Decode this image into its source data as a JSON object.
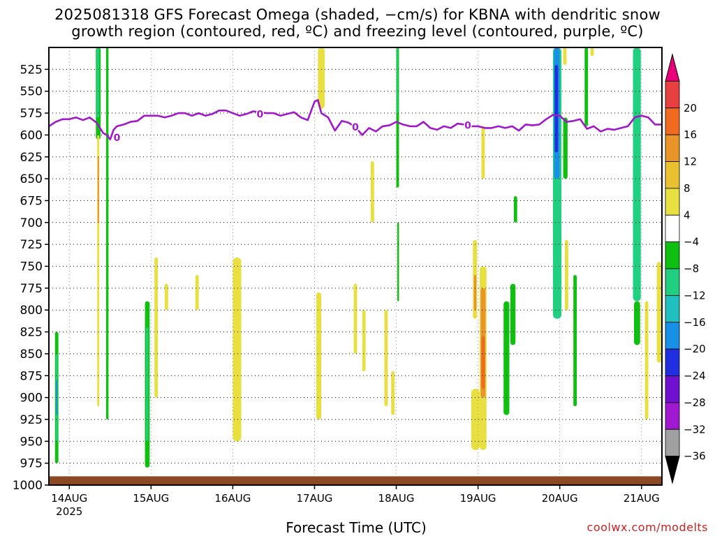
{
  "chart_data": {
    "type": "heatmap",
    "title_line1": "2025081318 GFS Forecast Omega (shaded, −cm/s) for KBNA with dendritic snow",
    "title_line2": "growth region (contoured, red, ºC) and freezing level (contoured, purple, ºC)",
    "xlabel": "Forecast Time (UTC)",
    "credit": "coolwx.com/modelts",
    "ylabel": "",
    "y_axis": {
      "ticks": [
        525,
        550,
        575,
        600,
        625,
        650,
        675,
        700,
        725,
        750,
        775,
        800,
        825,
        850,
        875,
        900,
        925,
        950,
        975,
        1000
      ],
      "range": [
        500,
        1000
      ],
      "unit": "hPa"
    },
    "x_axis": {
      "ticks": [
        {
          "label": "14AUG",
          "label2": "2025",
          "t": 6
        },
        {
          "label": "15AUG",
          "label2": "",
          "t": 30
        },
        {
          "label": "16AUG",
          "label2": "",
          "t": 54
        },
        {
          "label": "17AUG",
          "label2": "",
          "t": 78
        },
        {
          "label": "18AUG",
          "label2": "",
          "t": 102
        },
        {
          "label": "19AUG",
          "label2": "",
          "t": 126
        },
        {
          "label": "20AUG",
          "label2": "",
          "t": 150
        },
        {
          "label": "21AUG",
          "label2": "",
          "t": 174
        }
      ],
      "range": [
        0,
        180
      ],
      "unit": "hours from 2025081318"
    },
    "grid": true,
    "colorbar": {
      "labels": [
        "20",
        "16",
        "12",
        "8",
        "4",
        "−4",
        "−8",
        "−12",
        "−16",
        "−20",
        "−24",
        "−28",
        "−32",
        "−36"
      ],
      "colors": [
        "#e8007a",
        "#e84040",
        "#f06a20",
        "#e89428",
        "#e8c030",
        "#e8e040",
        "#ffffff",
        "#10c010",
        "#20d080",
        "#20c0c0",
        "#1890e8",
        "#2030e0",
        "#7010d0",
        "#a018d0",
        "#a0a0a0",
        "#000000"
      ]
    },
    "freezing_level": {
      "contour_label": "0",
      "t": [
        0,
        2,
        4,
        6,
        8,
        10,
        12,
        14,
        16,
        17,
        18,
        19,
        20,
        22,
        24,
        26,
        28,
        30,
        32,
        34,
        36,
        38,
        40,
        42,
        44,
        46,
        48,
        50,
        52,
        54,
        56,
        58,
        60,
        62,
        64,
        66,
        68,
        70,
        72,
        74,
        76,
        78,
        79,
        80,
        82,
        84,
        86,
        88,
        90,
        92,
        94,
        96,
        98,
        100,
        102,
        104,
        106,
        108,
        110,
        112,
        114,
        116,
        118,
        120,
        122,
        124,
        126,
        128,
        130,
        132,
        134,
        136,
        138,
        140,
        142,
        144,
        146,
        148,
        150,
        152,
        154,
        156,
        158,
        160,
        162,
        164,
        166,
        168,
        170,
        172,
        174,
        176,
        178,
        180
      ],
      "p": [
        590,
        585,
        582,
        582,
        580,
        583,
        580,
        586,
        598,
        600,
        605,
        594,
        590,
        588,
        585,
        584,
        578,
        578,
        578,
        580,
        578,
        575,
        575,
        578,
        575,
        578,
        576,
        572,
        572,
        575,
        578,
        576,
        573,
        574,
        575,
        575,
        578,
        576,
        574,
        580,
        583,
        562,
        560,
        575,
        580,
        595,
        584,
        586,
        591,
        600,
        592,
        596,
        590,
        589,
        585,
        588,
        590,
        590,
        585,
        592,
        594,
        590,
        592,
        587,
        588,
        590,
        590,
        592,
        592,
        590,
        592,
        590,
        595,
        588,
        589,
        588,
        582,
        577,
        578,
        585,
        584,
        582,
        593,
        590,
        596,
        593,
        594,
        592,
        590,
        580,
        578,
        580,
        588,
        588
      ]
    },
    "omega_regions": [
      {
        "t0": 1.8,
        "t1": 2.8,
        "p0": 825,
        "p1": 975,
        "value": -8
      },
      {
        "t0": 2.0,
        "t1": 2.6,
        "p0": 850,
        "p1": 950,
        "value": -12
      },
      {
        "t0": 2.1,
        "t1": 2.4,
        "p0": 880,
        "p1": 920,
        "value": -16
      },
      {
        "t0": 13.8,
        "t1": 15.2,
        "p0": 500,
        "p1": 605,
        "value": -8
      },
      {
        "t0": 14.0,
        "t1": 14.8,
        "p0": 500,
        "p1": 580,
        "value": -12
      },
      {
        "t0": 16.8,
        "t1": 17.5,
        "p0": 500,
        "p1": 925,
        "value": -8
      },
      {
        "t0": 14.2,
        "t1": 14.8,
        "p0": 600,
        "p1": 910,
        "value": 4
      },
      {
        "t0": 14.3,
        "t1": 14.6,
        "p0": 625,
        "p1": 700,
        "value": 8
      },
      {
        "t0": 28.2,
        "t1": 29.6,
        "p0": 790,
        "p1": 980,
        "value": -8
      },
      {
        "t0": 28.5,
        "t1": 29.2,
        "p0": 820,
        "p1": 950,
        "value": -12
      },
      {
        "t0": 133.5,
        "t1": 135.2,
        "p0": 790,
        "p1": 920,
        "value": -8
      },
      {
        "t0": 135.5,
        "t1": 137.0,
        "p0": 770,
        "p1": 840,
        "value": -8
      },
      {
        "t0": 136.5,
        "t1": 137.5,
        "p0": 670,
        "p1": 700,
        "value": -8
      },
      {
        "t0": 148.0,
        "t1": 150.5,
        "p0": 500,
        "p1": 810,
        "value": -12
      },
      {
        "t0": 148.3,
        "t1": 150.0,
        "p0": 500,
        "p1": 650,
        "value": -16
      },
      {
        "t0": 148.5,
        "t1": 149.5,
        "p0": 520,
        "p1": 620,
        "value": -20
      },
      {
        "t0": 148.3,
        "t1": 150.2,
        "p0": 650,
        "p1": 760,
        "value": -12
      },
      {
        "t0": 151.0,
        "t1": 152.3,
        "p0": 580,
        "p1": 650,
        "value": -8
      },
      {
        "t0": 154.0,
        "t1": 155.0,
        "p0": 760,
        "p1": 910,
        "value": -8
      },
      {
        "t0": 157.3,
        "t1": 158.3,
        "p0": 500,
        "p1": 590,
        "value": -8
      },
      {
        "t0": 171.5,
        "t1": 173.8,
        "p0": 500,
        "p1": 790,
        "value": -12
      },
      {
        "t0": 171.8,
        "t1": 173.6,
        "p0": 790,
        "p1": 840,
        "value": -8
      },
      {
        "t0": 102.0,
        "t1": 102.8,
        "p0": 500,
        "p1": 660,
        "value": -8
      },
      {
        "t0": 102.2,
        "t1": 102.6,
        "p0": 500,
        "p1": 575,
        "value": -12
      },
      {
        "t0": 102.3,
        "t1": 102.8,
        "p0": 700,
        "p1": 790,
        "value": -8
      },
      {
        "t0": 126.5,
        "t1": 128.5,
        "p0": 750,
        "p1": 960,
        "value": 4
      },
      {
        "t0": 126.8,
        "t1": 128.2,
        "p0": 775,
        "p1": 900,
        "value": 8
      },
      {
        "t0": 127.0,
        "t1": 128.0,
        "p0": 830,
        "p1": 890,
        "value": 12
      },
      {
        "t0": 124.0,
        "t1": 126.5,
        "p0": 890,
        "p1": 960,
        "value": 4
      },
      {
        "t0": 124.5,
        "t1": 125.7,
        "p0": 720,
        "p1": 810,
        "value": 4
      },
      {
        "t0": 124.8,
        "t1": 125.5,
        "p0": 760,
        "p1": 800,
        "value": 8
      },
      {
        "t0": 127.0,
        "t1": 128.0,
        "p0": 590,
        "p1": 650,
        "value": 4
      },
      {
        "t0": 79.0,
        "t1": 81.0,
        "p0": 500,
        "p1": 570,
        "value": 4
      },
      {
        "t0": 78.5,
        "t1": 80.0,
        "p0": 780,
        "p1": 925,
        "value": 4
      },
      {
        "t0": 54.0,
        "t1": 56.5,
        "p0": 740,
        "p1": 950,
        "value": 4
      },
      {
        "t0": 159.0,
        "t1": 160.0,
        "p0": 500,
        "p1": 510,
        "value": 4
      },
      {
        "t0": 31.0,
        "t1": 32.0,
        "p0": 740,
        "p1": 900,
        "value": 4
      },
      {
        "t0": 34.0,
        "t1": 35.0,
        "p0": 770,
        "p1": 800,
        "value": 4
      },
      {
        "t0": 175.0,
        "t1": 176.0,
        "p0": 790,
        "p1": 925,
        "value": 4
      },
      {
        "t0": 178.5,
        "t1": 179.8,
        "p0": 745,
        "p1": 860,
        "value": 4
      },
      {
        "t0": 151.5,
        "t1": 152.5,
        "p0": 720,
        "p1": 800,
        "value": 4
      },
      {
        "t0": 151.0,
        "t1": 152.0,
        "p0": 500,
        "p1": 520,
        "value": 4
      },
      {
        "t0": 89.5,
        "t1": 90.5,
        "p0": 770,
        "p1": 850,
        "value": 4
      },
      {
        "t0": 98.5,
        "t1": 99.5,
        "p0": 800,
        "p1": 910,
        "value": 4
      },
      {
        "t0": 92.0,
        "t1": 93.0,
        "p0": 800,
        "p1": 870,
        "value": 4
      },
      {
        "t0": 43.0,
        "t1": 44.0,
        "p0": 760,
        "p1": 800,
        "value": 4
      },
      {
        "t0": 94.5,
        "t1": 95.5,
        "p0": 630,
        "p1": 700,
        "value": 4
      },
      {
        "t0": 100.5,
        "t1": 101.5,
        "p0": 870,
        "p1": 920,
        "value": 4
      }
    ]
  }
}
